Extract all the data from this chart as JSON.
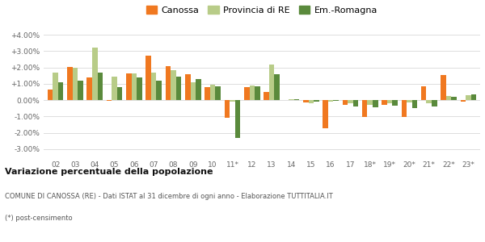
{
  "categories": [
    "02",
    "03",
    "04",
    "05",
    "06",
    "07",
    "08",
    "09",
    "10",
    "11*",
    "12",
    "13",
    "14",
    "15",
    "16",
    "17",
    "18*",
    "19*",
    "20*",
    "21*",
    "22*",
    "23*"
  ],
  "canossa": [
    0.65,
    2.05,
    1.4,
    -0.05,
    1.65,
    2.7,
    2.1,
    1.6,
    0.8,
    -1.1,
    0.8,
    0.5,
    0.0,
    -0.15,
    -1.7,
    -0.3,
    -1.05,
    -0.3,
    -1.05,
    0.85,
    1.55,
    -0.1
  ],
  "provincia": [
    1.7,
    2.0,
    3.2,
    1.45,
    1.65,
    1.7,
    1.85,
    1.1,
    0.95,
    -0.1,
    0.9,
    2.2,
    0.05,
    -0.2,
    -0.1,
    -0.2,
    -0.3,
    -0.2,
    -0.15,
    -0.2,
    0.25,
    0.3
  ],
  "emromagna": [
    1.1,
    1.2,
    1.7,
    0.8,
    1.4,
    1.2,
    1.45,
    1.3,
    0.85,
    -2.3,
    0.85,
    1.6,
    0.05,
    -0.1,
    -0.05,
    -0.4,
    -0.45,
    -0.35,
    -0.5,
    -0.4,
    0.2,
    0.35
  ],
  "color_canossa": "#f07820",
  "color_provincia": "#b8cc88",
  "color_emromagna": "#5a8a3c",
  "legend_labels": [
    "Canossa",
    "Provincia di RE",
    "Em.-Romagna"
  ],
  "title": "Variazione percentuale della popolazione",
  "footer1": "COMUNE DI CANOSSA (RE) - Dati ISTAT al 31 dicembre di ogni anno - Elaborazione TUTTITALIA.IT",
  "footer2": "(*) post-censimento",
  "ylim": [
    -3.5,
    4.5
  ],
  "yticks": [
    -3.0,
    -2.0,
    -1.0,
    0.0,
    1.0,
    2.0,
    3.0,
    4.0
  ],
  "ytick_labels": [
    "-3.00%",
    "-2.00%",
    "-1.00%",
    "0.00%",
    "+1.00%",
    "+2.00%",
    "+3.00%",
    "+4.00%"
  ],
  "bg_color": "#ffffff",
  "grid_color": "#dddddd"
}
